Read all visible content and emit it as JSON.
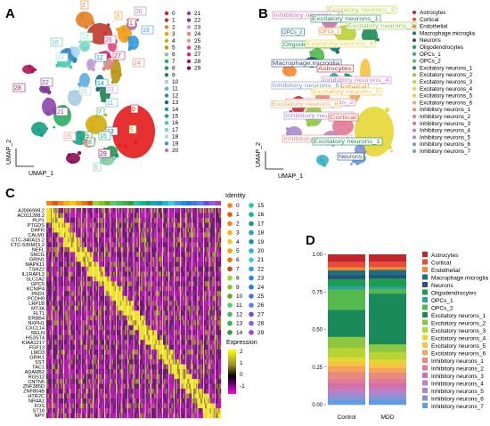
{
  "panels": {
    "A": {
      "letter": "A",
      "xlabel": "UMAP_1",
      "ylabel": "UMAP_2"
    },
    "B": {
      "letter": "B",
      "xlabel": "UMAP_1",
      "ylabel": "UMAP_2"
    },
    "C": {
      "letter": "C"
    },
    "D": {
      "letter": "D"
    }
  },
  "colors": {
    "clusters": [
      "#e41a1c",
      "#c0392b",
      "#e67e22",
      "#f39c12",
      "#d4ac0d",
      "#b7950b",
      "#7dcea0",
      "#27ae60",
      "#229954",
      "#1e8449",
      "#a9cce3",
      "#5dade2",
      "#2e86c1",
      "#1f618d",
      "#16a085",
      "#17a589",
      "#48c9b0",
      "#76d7c4",
      "#aed6f1",
      "#3498db",
      "#af7ac5",
      "#8e44ad",
      "#7d3c98",
      "#c39bd3",
      "#d98880",
      "#f1948a",
      "#ec407a",
      "#e91e63",
      "#ad1457",
      "#880e4f"
    ],
    "identity": [
      "#ff7f0e",
      "#e8590c",
      "#fd7e14",
      "#fab005",
      "#fcc419",
      "#f59f00",
      "#e67700",
      "#d9480f",
      "#94d82d",
      "#82c91e",
      "#66a80f",
      "#51cf66",
      "#40c057",
      "#37b24d",
      "#2f9e44",
      "#20c997",
      "#12b886",
      "#0ca678",
      "#15aabf",
      "#1098ad",
      "#22b8cf",
      "#3bc9db",
      "#339af0",
      "#228be6",
      "#1c7ed6",
      "#4c6ef5",
      "#5c7cfa",
      "#7048e8",
      "#845ef7",
      "#ae3ec9"
    ],
    "celltypes": [
      "#c0272d",
      "#e84c3d",
      "#f28b30",
      "#1b6f80",
      "#2e4d7b",
      "#1a9d4f",
      "#2ea0a9",
      "#56b94d",
      "#1b8a5a",
      "#8dc63f",
      "#b7d334",
      "#e6d634",
      "#f5c342",
      "#f7a35c",
      "#e88a7d",
      "#e07a96",
      "#d16fa8",
      "#c57cc2",
      "#a589d0",
      "#7f95d6",
      "#5e9ee0",
      "#39b1c7"
    ]
  },
  "panelA": {
    "legend_col1": [
      "0",
      "1",
      "2",
      "3",
      "4",
      "5",
      "6",
      "7",
      "8",
      "9",
      "10",
      "11",
      "12",
      "13",
      "14",
      "15",
      "16",
      "17",
      "18",
      "19",
      "20"
    ],
    "legend_col2": [
      "21",
      "22",
      "23",
      "24",
      "25",
      "26",
      "27",
      "28",
      "29"
    ],
    "labels": [
      "2",
      "20",
      "3",
      "1",
      "19",
      "17",
      "26",
      "27",
      "24",
      "16",
      "18",
      "12",
      "14",
      "22",
      "10",
      "23",
      "11",
      "28",
      "21",
      "7",
      "13",
      "0",
      "5",
      "15",
      "9",
      "25",
      "8",
      "29",
      "6",
      "4"
    ]
  },
  "panelB": {
    "legend": [
      "Astrocytes",
      "Cortical",
      "Endothelial",
      "Macrophage.microglia",
      "Neurons",
      "Oligodendrocytes",
      "OPCs_1",
      "OPCs_2",
      "Excitatory neurons_1",
      "Excitatory neurons_2",
      "Excitatory neurons_3",
      "Excitatory neurons_4",
      "Excitatory neurons_5",
      "Excitatory neurons_6",
      "Inhibitory neurons_1",
      "Inhibitory neurons_2",
      "Inhibitory neurons_3",
      "Inhibitory neurons_4",
      "Inhibitory neurons_5",
      "Inhibitory neurons_6",
      "Inhibitory neurons_7"
    ],
    "labels": [
      "Excitatory neurons_3",
      "Inhibitory neurons_3",
      "Excitatory neurons_1",
      "OPCs_2",
      "OPCs_1",
      "Excitatory neurons_2",
      "Oligodendrocytes",
      "Excitatory neurons_4",
      "Macrophage.microglia",
      "Astrocytes",
      "Inhibitory neurons_4",
      "Endothelial",
      "Inhibitory neurons_6",
      "Excitatory neurons_5",
      "Inhibitory neurons_2",
      "Excitatory neurons_6",
      "Inhibitory neurons_5",
      "Cortical",
      "Inhibitory neurons_1",
      "Excitatory neurons_1",
      "Neurons"
    ]
  },
  "panelC": {
    "genes": [
      "AJ006998.2",
      "AC011288.2",
      "PLP1",
      "PTGDS",
      "DHFR",
      "CALM1",
      "CTC-340A15.2",
      "CTC-535M15.2",
      "NEFL",
      "SNCG",
      "GRIN1",
      "MAPK11",
      "TSHZ2",
      "IL1RAPL2",
      "SLC1A2",
      "GPC5",
      "KCNIP4",
      "PKD1",
      "PCDH9",
      "LRP1B",
      "MT3A",
      "FLT1",
      "ERBB4",
      "NXPH1",
      "CXCL14",
      "RELN",
      "HS3ST4",
      "KIAA1217",
      "FGF13",
      "LMO3",
      "GRIK1",
      "SST",
      "TAC1",
      "ADARB2",
      "RGS12",
      "CNTN5",
      "ZNF385D",
      "ZNF804B",
      "HTR2C",
      "NR4A1",
      "FOS",
      "ST18",
      "NPY"
    ],
    "identity_title": "Identity",
    "identity_col1": [
      "0",
      "1",
      "2",
      "3",
      "4",
      "5",
      "6",
      "7",
      "8",
      "9",
      "10",
      "11",
      "12",
      "13",
      "14"
    ],
    "identity_col2": [
      "15",
      "16",
      "17",
      "18",
      "19",
      "20",
      "21",
      "22",
      "23",
      "24",
      "25",
      "26",
      "27",
      "28",
      "29"
    ],
    "expression_title": "Expression",
    "expression_ticks": [
      "2",
      "1",
      "0",
      "-1"
    ]
  },
  "chart_data": {
    "type": "bar",
    "stacked": true,
    "categories": [
      "Control",
      "MDD"
    ],
    "ylim": [
      0,
      1
    ],
    "yticks": [
      "0.00",
      "0.25",
      "0.50",
      "0.75",
      "1.00"
    ],
    "series": [
      {
        "name": "Astrocytes",
        "values": [
          0.045,
          0.045
        ]
      },
      {
        "name": "Cortical",
        "values": [
          0.035,
          0.035
        ]
      },
      {
        "name": "Endothelial",
        "values": [
          0.02,
          0.02
        ]
      },
      {
        "name": "Macrophage.microglia",
        "values": [
          0.03,
          0.035
        ]
      },
      {
        "name": "Neurons",
        "values": [
          0.025,
          0.02
        ]
      },
      {
        "name": "Oligodendrocytes",
        "values": [
          0.045,
          0.055
        ]
      },
      {
        "name": "OPCs_1",
        "values": [
          0.02,
          0.015
        ]
      },
      {
        "name": "OPCs_2",
        "values": [
          0.13,
          0.03
        ]
      },
      {
        "name": "Excitatory neurons_1",
        "values": [
          0.17,
          0.33
        ]
      },
      {
        "name": "Excitatory neurons_2",
        "values": [
          0.07,
          0.05
        ]
      },
      {
        "name": "Excitatory neurons_3",
        "values": [
          0.06,
          0.05
        ]
      },
      {
        "name": "Excitatory neurons_4",
        "values": [
          0.03,
          0.025
        ]
      },
      {
        "name": "Excitatory neurons_5",
        "values": [
          0.025,
          0.03
        ]
      },
      {
        "name": "Excitatory neurons_6",
        "values": [
          0.035,
          0.03
        ]
      },
      {
        "name": "Inhibitory neurons_1",
        "values": [
          0.045,
          0.04
        ]
      },
      {
        "name": "Inhibitory neurons_2",
        "values": [
          0.03,
          0.03
        ]
      },
      {
        "name": "Inhibitory neurons_3",
        "values": [
          0.03,
          0.03
        ]
      },
      {
        "name": "Inhibitory neurons_4",
        "values": [
          0.025,
          0.025
        ]
      },
      {
        "name": "Inhibitory neurons_5",
        "values": [
          0.03,
          0.03
        ]
      },
      {
        "name": "Inhibitory neurons_6",
        "values": [
          0.02,
          0.025
        ]
      },
      {
        "name": "Inhibitory neurons_7",
        "values": [
          0.03,
          0.03
        ]
      }
    ]
  }
}
